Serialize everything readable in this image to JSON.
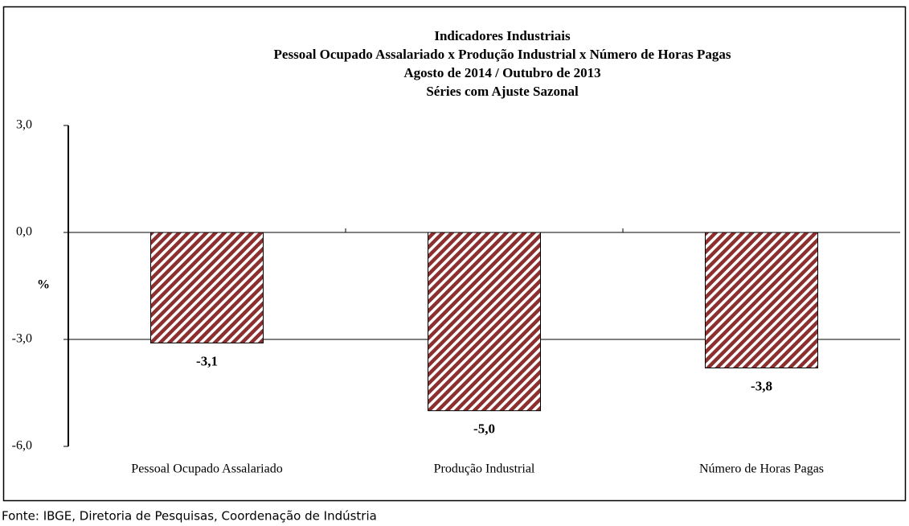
{
  "chart_data": {
    "type": "bar",
    "title": [
      "Indicadores Industriais",
      "Pessoal Ocupado  Assalariado x Produção Industrial x Número de Horas Pagas",
      "Agosto de 2014 / Outubro de  2013",
      "Séries com Ajuste Sazonal"
    ],
    "y_label": "%",
    "categories": [
      "Pessoal Ocupado Assalariado",
      "Produção Industrial",
      "Número de Horas Pagas"
    ],
    "values": [
      -3.1,
      -5.0,
      -3.8
    ],
    "value_labels": [
      "-3,1",
      "-5,0",
      "-3,8"
    ],
    "color": "#8b2f2f",
    "ylim": [
      -6,
      3
    ],
    "yticks": [
      {
        "value": -6,
        "label": "-6,0"
      },
      {
        "value": -3,
        "label": "-3,0"
      },
      {
        "value": 0,
        "label": "0,0"
      },
      {
        "value": 3,
        "label": "3,0"
      }
    ],
    "grid": true,
    "source": "Fonte: IBGE, Diretoria de Pesquisas, Coordenação de Indústria"
  }
}
